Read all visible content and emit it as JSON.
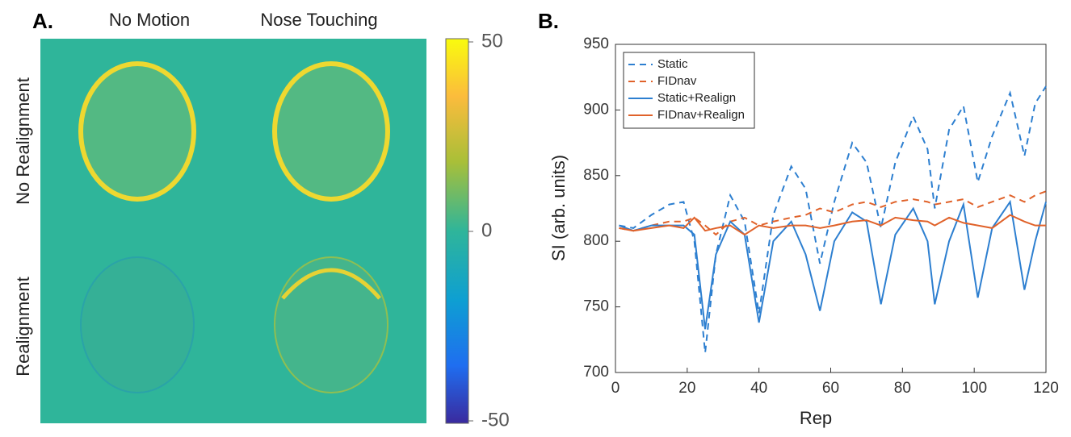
{
  "chart_data": [
    {
      "type": "image",
      "panel": "A.",
      "columns": [
        "No Motion",
        "Nose Touching"
      ],
      "rows": [
        "No Realignment",
        "Realignment"
      ],
      "clim": [
        -50,
        50
      ],
      "cticks": [
        50,
        0,
        -50
      ]
    },
    {
      "type": "line",
      "panel": "B.",
      "xlabel": "Rep",
      "ylabel": "SI (arb. units)",
      "xlim": [
        0,
        120
      ],
      "xticks": [
        0,
        20,
        40,
        60,
        80,
        100,
        120
      ],
      "ylim": [
        700,
        950
      ],
      "yticks": [
        700,
        750,
        800,
        850,
        900,
        950
      ],
      "legend": "upper-left",
      "x": [
        1,
        5,
        10,
        15,
        19,
        22,
        25,
        28,
        32,
        36,
        40,
        44,
        49,
        53,
        57,
        61,
        66,
        70,
        74,
        78,
        83,
        87,
        89,
        93,
        97,
        101,
        105,
        110,
        114,
        117,
        120
      ],
      "series": [
        {
          "name": "Static",
          "color": "#2d7fd0",
          "dash": true,
          "values": [
            812,
            810,
            820,
            828,
            830,
            800,
            715,
            790,
            835,
            815,
            745,
            820,
            857,
            840,
            783,
            830,
            875,
            860,
            810,
            860,
            895,
            870,
            825,
            885,
            903,
            845,
            880,
            913,
            865,
            905,
            918
          ]
        },
        {
          "name": "FIDnav",
          "color": "#e0622a",
          "dash": true,
          "values": [
            810,
            808,
            812,
            815,
            815,
            818,
            812,
            805,
            815,
            818,
            812,
            815,
            818,
            820,
            825,
            822,
            828,
            830,
            826,
            830,
            832,
            830,
            828,
            830,
            832,
            826,
            830,
            835,
            830,
            835,
            838
          ]
        },
        {
          "name": "Static+Realign",
          "color": "#2d7fd0",
          "dash": false,
          "values": [
            812,
            808,
            812,
            812,
            812,
            805,
            733,
            790,
            815,
            805,
            738,
            800,
            815,
            790,
            747,
            800,
            822,
            815,
            752,
            805,
            825,
            800,
            752,
            800,
            828,
            757,
            810,
            830,
            763,
            800,
            830
          ]
        },
        {
          "name": "FIDnav+Realign",
          "color": "#e0622a",
          "dash": false,
          "values": [
            810,
            808,
            810,
            812,
            810,
            818,
            808,
            810,
            812,
            805,
            812,
            810,
            812,
            812,
            810,
            812,
            815,
            816,
            812,
            818,
            816,
            815,
            812,
            818,
            814,
            812,
            810,
            820,
            815,
            812,
            812
          ]
        }
      ]
    }
  ]
}
